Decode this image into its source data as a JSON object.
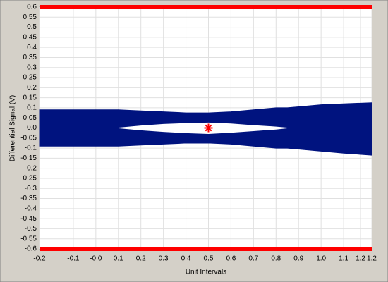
{
  "chart_data": {
    "type": "eye",
    "x_label": "Unit Intervals",
    "y_label": "Differential Signal  (V)",
    "x": [
      -0.25,
      0,
      0.1,
      0.2,
      0.3,
      0.4,
      0.5,
      0.6,
      0.7,
      0.8,
      0.85,
      0.9,
      1.0,
      1.1,
      1.225
    ],
    "series": [
      {
        "color": "#00137f",
        "values": [
          0.09,
          0.09,
          0.09,
          0.085,
          0.08,
          0.075,
          0.075,
          0.08,
          0.09,
          0.1,
          0.1,
          0.105,
          0.115,
          0.12,
          0.125
        ]
      },
      {
        "color": "#00137f",
        "values": [
          -0.09,
          -0.09,
          -0.09,
          -0.085,
          -0.08,
          -0.075,
          -0.075,
          -0.08,
          -0.09,
          -0.1,
          -0.1,
          -0.105,
          -0.115,
          -0.125,
          -0.135
        ]
      },
      {
        "color": "#ffffff",
        "values": [
          null,
          null,
          0,
          0.01,
          0.018,
          0.022,
          0.025,
          0.02,
          0.012,
          0.005,
          0,
          null,
          null,
          null,
          null
        ]
      },
      {
        "color": "#ffffff",
        "values": [
          null,
          null,
          0,
          -0.01,
          -0.018,
          -0.024,
          -0.028,
          -0.022,
          -0.014,
          -0.006,
          0,
          null,
          null,
          null,
          null
        ]
      }
    ],
    "limits": [
      0.6,
      -0.6
    ],
    "limit_color": "#ff0000",
    "marker": {
      "x": 0.5,
      "y": 0,
      "color": "#ff0000"
    },
    "xlim": [
      -0.25,
      1.225
    ],
    "ylim": [
      -0.6,
      0.6
    ],
    "xticks": [
      {
        "value": -0.25,
        "label": "-0.2"
      },
      -0.1,
      {
        "value": 0,
        "label": "-0.0"
      },
      0.1,
      0.2,
      0.3,
      0.4,
      0.5,
      0.6,
      0.7,
      0.8,
      0.9,
      {
        "value": 1,
        "label": "1.0"
      },
      1.1,
      {
        "value": 1.175,
        "label": "1.2"
      },
      {
        "value": 1.225,
        "label": "1.2"
      }
    ],
    "yticks": [
      0.6,
      0.55,
      0.5,
      0.45,
      0.4,
      0.35,
      0.3,
      0.25,
      0.2,
      0.15,
      0.1,
      0.05,
      {
        "value": 0,
        "label": "0.0"
      },
      -0.05,
      -0.1,
      -0.15,
      -0.2,
      -0.25,
      -0.3,
      -0.35,
      -0.4,
      -0.45,
      -0.5,
      -0.55,
      -0.6
    ],
    "grid": true
  }
}
